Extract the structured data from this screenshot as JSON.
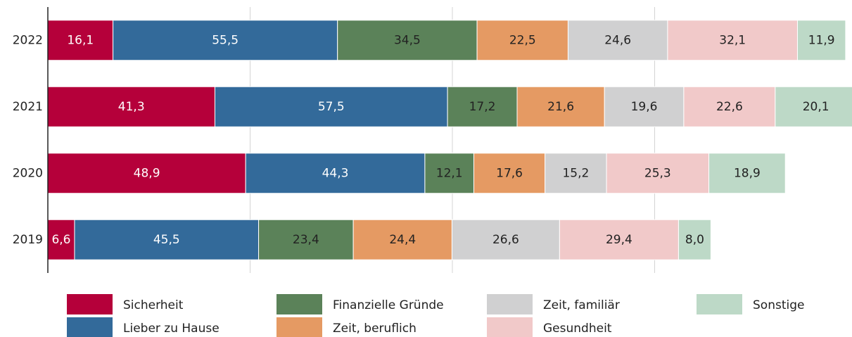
{
  "chart_data": {
    "type": "stacked-barh",
    "categories": [
      "2022",
      "2021",
      "2020",
      "2019"
    ],
    "xlim": [
      0,
      198
    ],
    "xticks": [
      50,
      100,
      150
    ],
    "grid": true,
    "series": [
      {
        "name": "Sicherheit",
        "color": "#b5003a",
        "values": [
          16.1,
          41.3,
          48.9,
          6.6
        ],
        "value_labels": [
          "16,1",
          "41,3",
          "48,9",
          "6,6"
        ]
      },
      {
        "name": "Lieber zu Hause",
        "color": "#336a9a",
        "values": [
          55.5,
          57.5,
          44.3,
          45.5
        ],
        "value_labels": [
          "55,5",
          "57,5",
          "44,3",
          "45,5"
        ]
      },
      {
        "name": "Finanzielle Gründe",
        "color": "#5b8259",
        "values": [
          34.5,
          17.2,
          12.1,
          23.4
        ],
        "value_labels": [
          "34,5",
          "17,2",
          "12,1",
          "23,4"
        ]
      },
      {
        "name": "Zeit, beruflich",
        "color": "#e59a63",
        "values": [
          22.5,
          21.6,
          17.6,
          24.4
        ],
        "value_labels": [
          "22,5",
          "21,6",
          "17,6",
          "24,4"
        ]
      },
      {
        "name": "Zeit, familiär",
        "color": "#d0d0d1",
        "values": [
          24.6,
          19.6,
          15.2,
          26.6
        ],
        "value_labels": [
          "24,6",
          "19,6",
          "15,2",
          "26,6"
        ]
      },
      {
        "name": "Gesundheit",
        "color": "#f1c9c9",
        "values": [
          32.1,
          22.6,
          25.3,
          29.4
        ],
        "value_labels": [
          "32,1",
          "22,6",
          "25,3",
          "29,4"
        ]
      },
      {
        "name": "Sonstige",
        "color": "#bdd9c7",
        "values": [
          11.9,
          20.1,
          18.9,
          8.0
        ],
        "value_labels": [
          "11,9",
          "20,1",
          "18,9",
          "8,0"
        ]
      }
    ]
  }
}
